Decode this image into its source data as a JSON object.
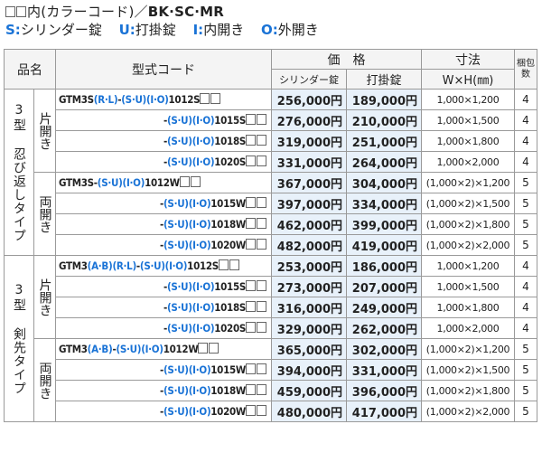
{
  "header": {
    "line1_prefix": "内(カラーコード)／",
    "line1_bold": "BK·SC·MR",
    "legend": [
      {
        "key": "S:",
        "text": "シリンダー錠"
      },
      {
        "key": "U:",
        "text": "打掛錠"
      },
      {
        "key": "I:",
        "text": "内開き"
      },
      {
        "key": "O:",
        "text": "外開き"
      }
    ]
  },
  "table_headers": {
    "name": "品名",
    "code": "型式コード",
    "price": "価　格",
    "price_cyl": "シリンダー錠",
    "price_uchi": "打掛錠",
    "size_top": "寸法",
    "size_bottom": "W×H(㎜)",
    "pack": "梱包数"
  },
  "groups": [
    {
      "type": "3型 忍び返しタイプ",
      "subgroups": [
        {
          "opening": "片開き",
          "rows": [
            {
              "code_head": "GTM3S",
              "code_rl": "(R·L)",
              "code_mid": "-(S·U)(I·O)1012S",
              "cyl": "256,000円",
              "uchi": "189,000円",
              "size": "1,000×1,200",
              "pack": "4"
            },
            {
              "code_head": "",
              "code_rl": "",
              "code_mid": "-(S·U)(I·O)1015S",
              "cyl": "276,000円",
              "uchi": "210,000円",
              "size": "1,000×1,500",
              "pack": "4"
            },
            {
              "code_head": "",
              "code_rl": "",
              "code_mid": "-(S·U)(I·O)1018S",
              "cyl": "319,000円",
              "uchi": "251,000円",
              "size": "1,000×1,800",
              "pack": "4"
            },
            {
              "code_head": "",
              "code_rl": "",
              "code_mid": "-(S·U)(I·O)1020S",
              "cyl": "331,000円",
              "uchi": "264,000円",
              "size": "1,000×2,000",
              "pack": "4"
            }
          ]
        },
        {
          "opening": "両開き",
          "rows": [
            {
              "code_head": "GTM3S",
              "code_rl": "",
              "code_mid": "-(S·U)(I·O)1012W",
              "cyl": "367,000円",
              "uchi": "304,000円",
              "size": "(1,000×2)×1,200",
              "pack": "5"
            },
            {
              "code_head": "",
              "code_rl": "",
              "code_mid": "-(S·U)(I·O)1015W",
              "cyl": "397,000円",
              "uchi": "334,000円",
              "size": "(1,000×2)×1,500",
              "pack": "5"
            },
            {
              "code_head": "",
              "code_rl": "",
              "code_mid": "-(S·U)(I·O)1018W",
              "cyl": "462,000円",
              "uchi": "399,000円",
              "size": "(1,000×2)×1,800",
              "pack": "5"
            },
            {
              "code_head": "",
              "code_rl": "",
              "code_mid": "-(S·U)(I·O)1020W",
              "cyl": "482,000円",
              "uchi": "419,000円",
              "size": "(1,000×2)×2,000",
              "pack": "5"
            }
          ]
        }
      ]
    },
    {
      "type": "3型 剣先タイプ",
      "subgroups": [
        {
          "opening": "片開き",
          "rows": [
            {
              "code_head": "GTM3",
              "code_ab": "(A·B)",
              "code_rl": "(R·L)",
              "code_mid": "-(S·U)(I·O)1012S",
              "cyl": "253,000円",
              "uchi": "186,000円",
              "size": "1,000×1,200",
              "pack": "4"
            },
            {
              "code_head": "",
              "code_ab": "",
              "code_rl": "",
              "code_mid": "-(S·U)(I·O)1015S",
              "cyl": "273,000円",
              "uchi": "207,000円",
              "size": "1,000×1,500",
              "pack": "4"
            },
            {
              "code_head": "",
              "code_ab": "",
              "code_rl": "",
              "code_mid": "-(S·U)(I·O)1018S",
              "cyl": "316,000円",
              "uchi": "249,000円",
              "size": "1,000×1,800",
              "pack": "4"
            },
            {
              "code_head": "",
              "code_ab": "",
              "code_rl": "",
              "code_mid": "-(S·U)(I·O)1020S",
              "cyl": "329,000円",
              "uchi": "262,000円",
              "size": "1,000×2,000",
              "pack": "4"
            }
          ]
        },
        {
          "opening": "両開き",
          "rows": [
            {
              "code_head": "GTM3",
              "code_ab": "(A·B)",
              "code_rl": "",
              "code_mid": "-(S·U)(I·O)1012W",
              "cyl": "365,000円",
              "uchi": "302,000円",
              "size": "(1,000×2)×1,200",
              "pack": "5"
            },
            {
              "code_head": "",
              "code_ab": "",
              "code_rl": "",
              "code_mid": "-(S·U)(I·O)1015W",
              "cyl": "394,000円",
              "uchi": "331,000円",
              "size": "(1,000×2)×1,500",
              "pack": "5"
            },
            {
              "code_head": "",
              "code_ab": "",
              "code_rl": "",
              "code_mid": "-(S·U)(I·O)1018W",
              "cyl": "459,000円",
              "uchi": "396,000円",
              "size": "(1,000×2)×1,800",
              "pack": "5"
            },
            {
              "code_head": "",
              "code_ab": "",
              "code_rl": "",
              "code_mid": "-(S·U)(I·O)1020W",
              "cyl": "480,000円",
              "uchi": "417,000円",
              "size": "(1,000×2)×2,000",
              "pack": "5"
            }
          ]
        }
      ]
    }
  ],
  "colors": {
    "accent_blue": "#1a73d6",
    "price_bg": "#e8f1fa"
  }
}
